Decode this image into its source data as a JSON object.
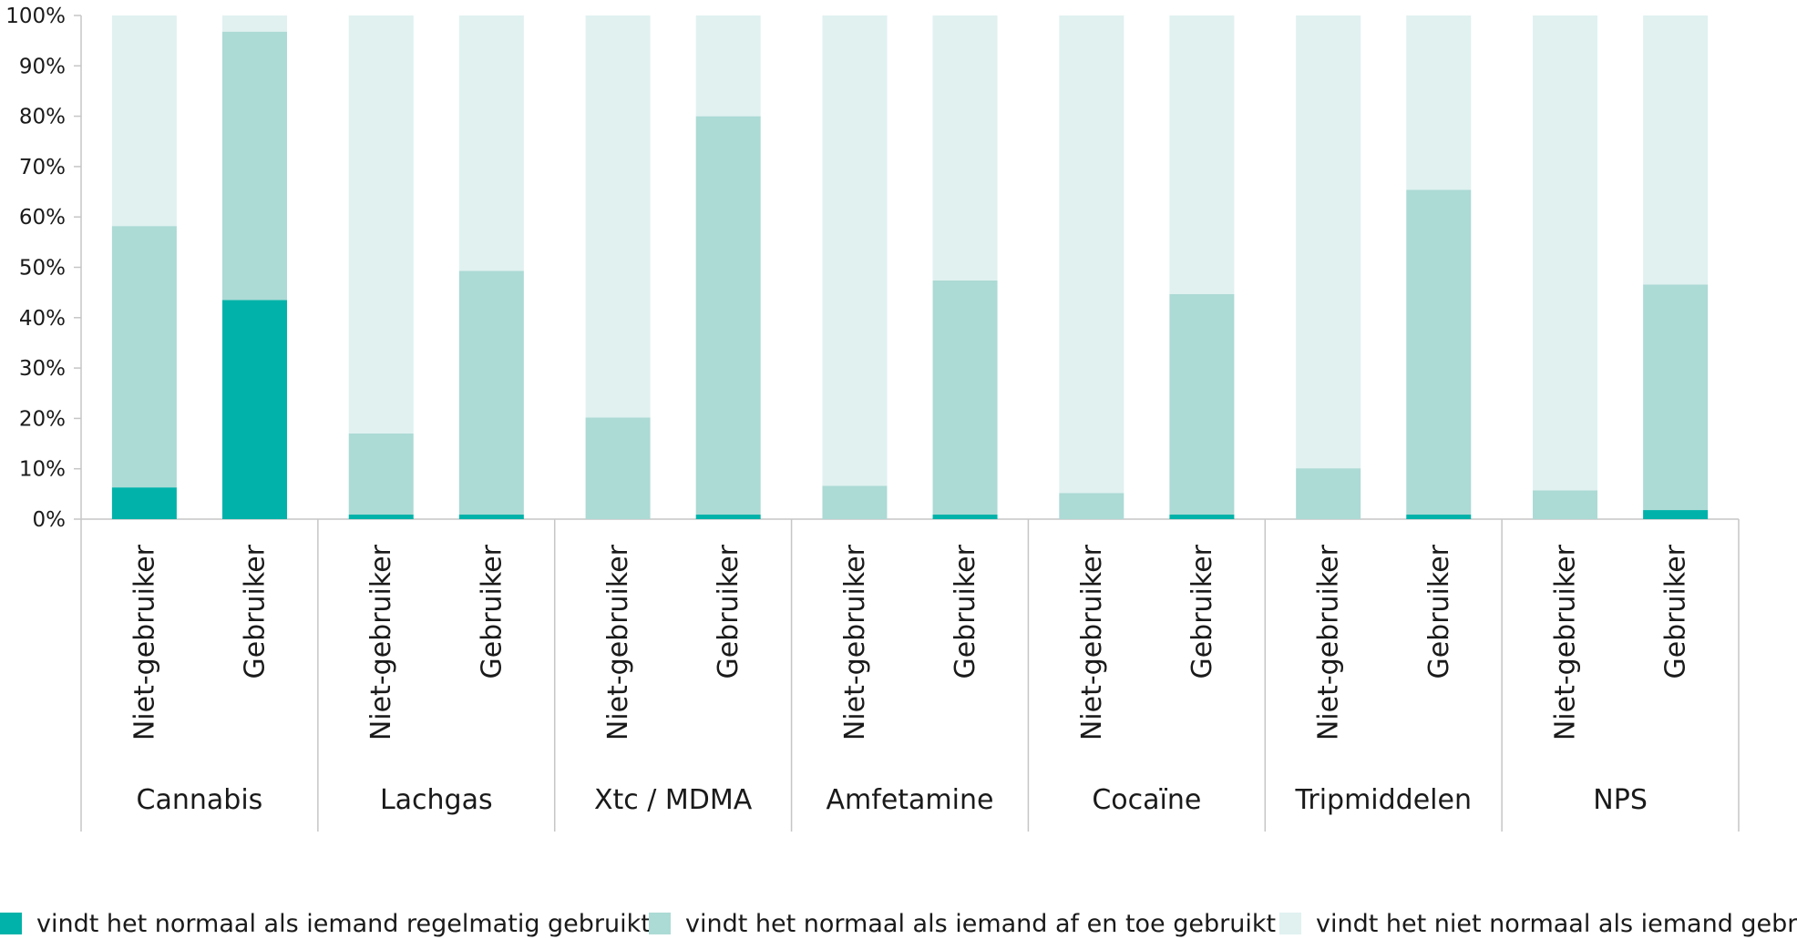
{
  "chart_data": {
    "type": "bar",
    "stacked": true,
    "title": "",
    "xlabel": "",
    "ylabel": "",
    "ylim": [
      0,
      100
    ],
    "y_ticks": [
      "0%",
      "10%",
      "20%",
      "30%",
      "40%",
      "50%",
      "60%",
      "70%",
      "80%",
      "90%",
      "100%"
    ],
    "grid": false,
    "legend_position": "bottom",
    "groups": [
      "Cannabis",
      "Lachgas",
      "Xtc / MDMA",
      "Amfetamine",
      "Cocaïne",
      "Tripmiddelen",
      "NPS"
    ],
    "categories": [
      "Niet-gebruiker",
      "Gebruiker",
      "Niet-gebruiker",
      "Gebruiker",
      "Niet-gebruiker",
      "Gebruiker",
      "Niet-gebruiker",
      "Gebruiker",
      "Niet-gebruiker",
      "Gebruiker",
      "Niet-gebruiker",
      "Gebruiker",
      "Niet-gebruiker",
      "Gebruiker"
    ],
    "series": [
      {
        "name": "vindt het normaal als iemand regelmatig gebruikt",
        "color": "#00b2a9",
        "values": [
          6.3,
          43.5,
          0.9,
          0.9,
          0.0,
          0.9,
          0.0,
          0.9,
          0.0,
          0.9,
          0.0,
          0.9,
          0.0,
          1.8
        ]
      },
      {
        "name": "vindt het normaal als iemand af en toe gebruikt",
        "color": "#acdad5",
        "values": [
          51.9,
          53.3,
          16.1,
          48.4,
          20.2,
          79.1,
          6.6,
          46.5,
          5.2,
          43.8,
          10.1,
          64.5,
          5.7,
          44.8
        ]
      },
      {
        "name": "vindt het niet normaal als iemand gebruikt",
        "color": "#e0f1f0",
        "values": [
          41.8,
          3.2,
          83.0,
          50.7,
          79.8,
          20.0,
          93.4,
          52.6,
          94.8,
          55.3,
          89.9,
          34.6,
          94.3,
          53.4
        ]
      }
    ]
  }
}
